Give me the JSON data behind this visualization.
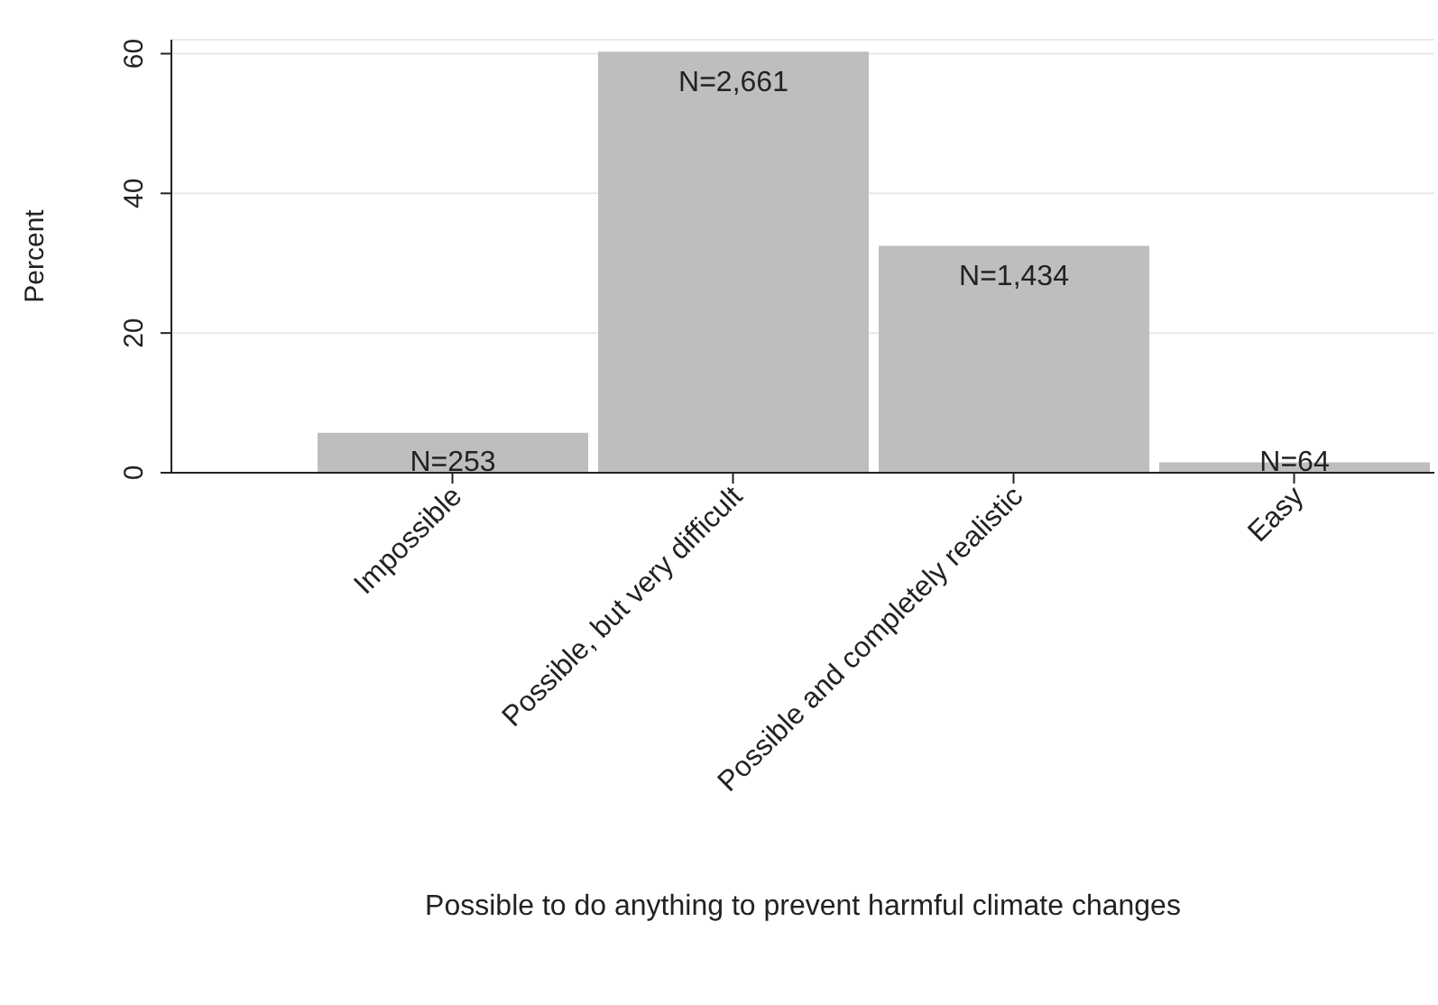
{
  "chart_data": {
    "type": "bar",
    "xlabel": "Possible to do anything to prevent harmful climate changes",
    "ylabel": "Percent",
    "categories": [
      "Impossible",
      "Possible, but very difficult",
      "Possible and completely realistic",
      "Easy"
    ],
    "values": [
      5.7,
      60.3,
      32.5,
      1.5
    ],
    "annotations": [
      {
        "text": "N=253",
        "x": "Impossible",
        "y": 5.7
      },
      {
        "text": "N=2,661",
        "x": "Possible, but very difficult",
        "y": 60.3
      },
      {
        "text": "N=1,434",
        "x": "Possible and completely realistic",
        "y": 32.5
      },
      {
        "text": "N=64",
        "x": "Easy",
        "y": 1.5
      }
    ],
    "color": "#bebebe",
    "ylim": [
      0,
      62
    ],
    "yticks": [
      0,
      20,
      40,
      60
    ],
    "grid": "y"
  }
}
